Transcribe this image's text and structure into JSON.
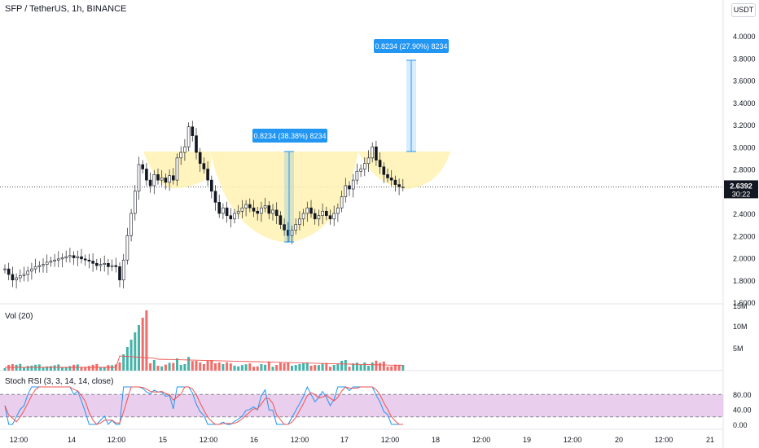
{
  "header": {
    "symbol_title": "SFP / TetherUS, 1h, BINANCE"
  },
  "currency_button": "USDT",
  "colors": {
    "up": "#26a69a",
    "down": "#ef5350",
    "cup": "#fff2b3",
    "measure": "#2196f3",
    "stoch_band": "#e1bee7"
  },
  "price_axis": {
    "ticks": [
      "4.0000",
      "3.8000",
      "3.6000",
      "3.4000",
      "3.2000",
      "3.0000",
      "2.8000",
      "2.6000",
      "2.4000",
      "2.2000",
      "2.0000",
      "1.8000",
      "1.6000"
    ],
    "current_price": "2.6392",
    "countdown": "30:22"
  },
  "volume_pane": {
    "title": "Vol (20)",
    "ticks": [
      "15M",
      "10M",
      "5M"
    ]
  },
  "stoch_pane": {
    "title": "Stoch RSI (3, 3, 14, 14, close)",
    "ticks": [
      "80.00",
      "40.00",
      "0.00"
    ]
  },
  "time_axis": {
    "ticks": [
      "12:00",
      "14",
      "12:00",
      "15",
      "12:00",
      "16",
      "12:00",
      "17",
      "12:00",
      "18",
      "12:00",
      "19",
      "12:00",
      "20",
      "12:00",
      "21"
    ]
  },
  "annotations": {
    "measure1": "0.8234 (38.38%) 8234",
    "measure2": "0.8234 (27.90%) 8234"
  },
  "chart_data": {
    "type": "candlestick",
    "title": "SFP / TetherUS, 1h, BINANCE",
    "ylim": [
      1.6,
      4.1
    ],
    "current_price": 2.6392,
    "candles_close": [
      1.9,
      1.85,
      1.8,
      1.82,
      1.84,
      1.85,
      1.88,
      1.9,
      1.92,
      1.93,
      1.94,
      1.96,
      1.97,
      1.98,
      1.99,
      2.0,
      2.01,
      2.02,
      2.0,
      2.01,
      1.99,
      1.98,
      1.97,
      1.95,
      1.93,
      1.94,
      1.95,
      1.92,
      1.93,
      1.92,
      1.8,
      1.98,
      2.2,
      2.4,
      2.6,
      2.84,
      2.8,
      2.7,
      2.65,
      2.75,
      2.7,
      2.72,
      2.68,
      2.74,
      2.7,
      2.9,
      2.95,
      3.0,
      3.18,
      3.1,
      2.95,
      2.85,
      2.8,
      2.7,
      2.6,
      2.5,
      2.4,
      2.45,
      2.38,
      2.35,
      2.4,
      2.42,
      2.45,
      2.48,
      2.45,
      2.42,
      2.4,
      2.45,
      2.47,
      2.4,
      2.43,
      2.38,
      2.3,
      2.25,
      2.2,
      2.25,
      2.3,
      2.35,
      2.4,
      2.45,
      2.4,
      2.35,
      2.38,
      2.42,
      2.38,
      2.35,
      2.4,
      2.45,
      2.55,
      2.65,
      2.62,
      2.7,
      2.78,
      2.8,
      2.85,
      2.9,
      3.0,
      2.88,
      2.82,
      2.75,
      2.72,
      2.7,
      2.66,
      2.64,
      2.64
    ]
  }
}
